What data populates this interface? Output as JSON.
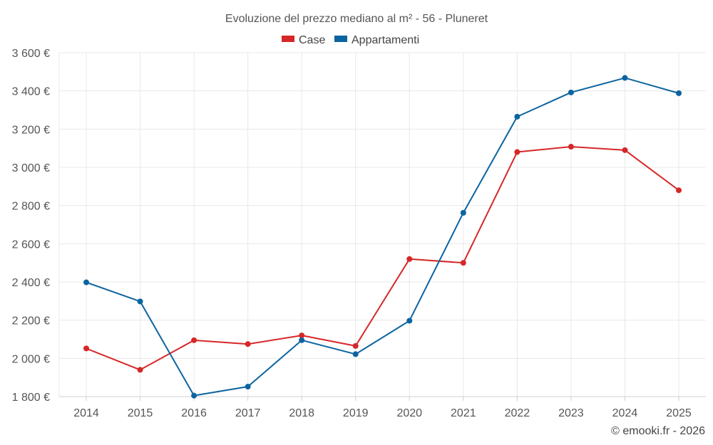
{
  "chart_data": {
    "type": "line",
    "title": "Evoluzione del prezzo mediano al m² - 56 - Pluneret",
    "categories": [
      "2014",
      "2015",
      "2016",
      "2017",
      "2018",
      "2019",
      "2020",
      "2021",
      "2022",
      "2023",
      "2024",
      "2025"
    ],
    "ylim": [
      1800,
      3600
    ],
    "yticks": [
      1800,
      2000,
      2200,
      2400,
      2600,
      2800,
      3000,
      3200,
      3400,
      3600
    ],
    "ytick_labels": [
      "1 800 €",
      "2 000 €",
      "2 200 €",
      "2 400 €",
      "2 600 €",
      "2 800 €",
      "3 000 €",
      "3 200 €",
      "3 400 €",
      "3 600 €"
    ],
    "legend_position": "top-center",
    "grid": true,
    "series": [
      {
        "name": "Case",
        "color": "#d62728",
        "values": [
          2052,
          1940,
          2095,
          2075,
          2120,
          2065,
          2520,
          2500,
          3080,
          3108,
          3090,
          2880
        ]
      },
      {
        "name": "Appartamenti",
        "color": "#0b64a0",
        "values": [
          2398,
          2298,
          1805,
          1852,
          2095,
          2022,
          2197,
          2762,
          3265,
          3392,
          3468,
          3388
        ]
      }
    ]
  },
  "credit": "© emooki.fr - 2026"
}
